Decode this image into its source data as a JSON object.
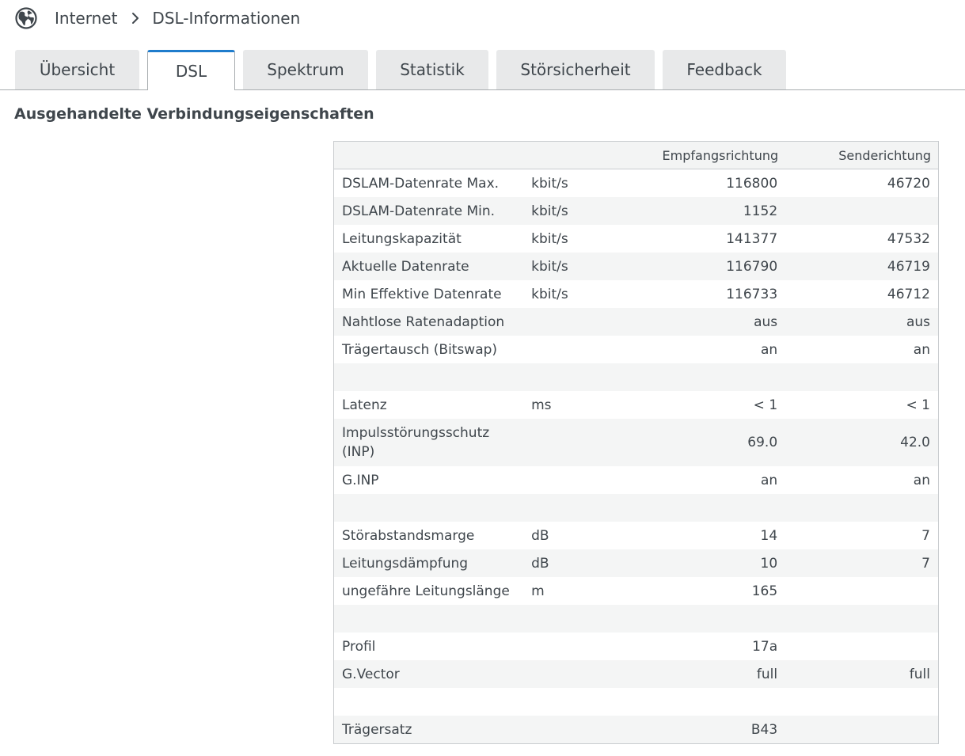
{
  "icons": {
    "breadcrumb_icon": "globe-icon",
    "separator_icon": "chevron-right-icon"
  },
  "breadcrumb": {
    "parent": "Internet",
    "current": "DSL-Informationen"
  },
  "tabs": [
    {
      "label": "Übersicht",
      "active": false
    },
    {
      "label": "DSL",
      "active": true
    },
    {
      "label": "Spektrum",
      "active": false
    },
    {
      "label": "Statistik",
      "active": false
    },
    {
      "label": "Störsicherheit",
      "active": false
    },
    {
      "label": "Feedback",
      "active": false
    }
  ],
  "colors": {
    "accent": "#1f7ccc",
    "text": "#3f464c"
  },
  "section": {
    "title": "Ausgehandelte Verbindungseigenschaften"
  },
  "table": {
    "headers": {
      "label": "",
      "unit": "",
      "downstream": "Empfangsrichtung",
      "upstream": "Senderichtung"
    },
    "rows": [
      {
        "label": "DSLAM-Datenrate Max.",
        "unit": "kbit/s",
        "down": "116800",
        "up": "46720"
      },
      {
        "label": "DSLAM-Datenrate Min.",
        "unit": "kbit/s",
        "down": "1152",
        "up": ""
      },
      {
        "label": "Leitungskapazität",
        "unit": "kbit/s",
        "down": "141377",
        "up": "47532"
      },
      {
        "label": "Aktuelle Datenrate",
        "unit": "kbit/s",
        "down": "116790",
        "up": "46719"
      },
      {
        "label": "Min Effektive Datenrate",
        "unit": "kbit/s",
        "down": "116733",
        "up": "46712"
      },
      {
        "label": "Nahtlose Ratenadaption",
        "unit": "",
        "down": "aus",
        "up": "aus"
      },
      {
        "label": "Trägertausch (Bitswap)",
        "unit": "",
        "down": "an",
        "up": "an"
      },
      {
        "label": "",
        "unit": "",
        "down": "",
        "up": ""
      },
      {
        "label": "Latenz",
        "unit": "ms",
        "down": "< 1",
        "up": "< 1"
      },
      {
        "label": "Impulsstörungsschutz (INP)",
        "unit": "",
        "down": "69.0",
        "up": "42.0"
      },
      {
        "label": "G.INP",
        "unit": "",
        "down": "an",
        "up": "an"
      },
      {
        "label": "",
        "unit": "",
        "down": "",
        "up": ""
      },
      {
        "label": "Störabstandsmarge",
        "unit": "dB",
        "down": "14",
        "up": "7"
      },
      {
        "label": "Leitungsdämpfung",
        "unit": "dB",
        "down": "10",
        "up": "7"
      },
      {
        "label": "ungefähre Leitungslänge",
        "unit": "m",
        "down": "165",
        "up": ""
      },
      {
        "label": "",
        "unit": "",
        "down": "",
        "up": ""
      },
      {
        "label": "Profil",
        "unit": "",
        "down": "17a",
        "up": ""
      },
      {
        "label": "G.Vector",
        "unit": "",
        "down": "full",
        "up": "full"
      },
      {
        "label": "",
        "unit": "",
        "down": "",
        "up": ""
      },
      {
        "label": "Trägersatz",
        "unit": "",
        "down": "B43",
        "up": ""
      }
    ]
  }
}
